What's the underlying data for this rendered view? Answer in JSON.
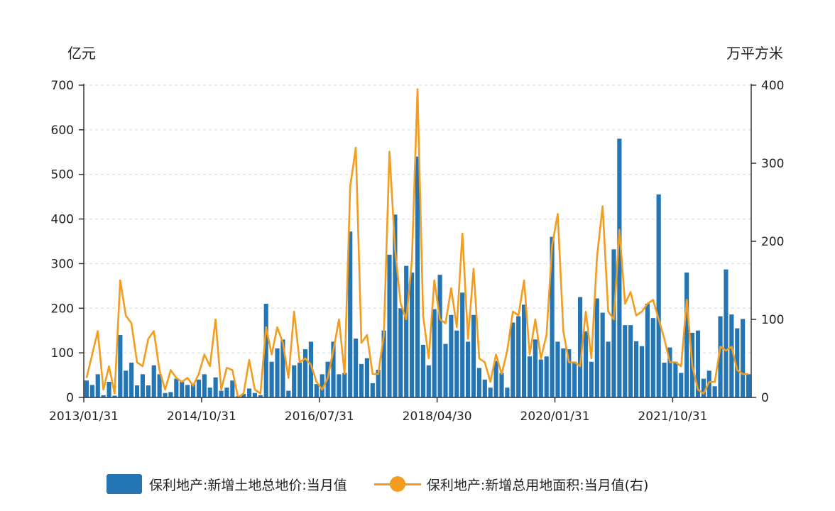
{
  "chart_data": {
    "type": "bar+line",
    "left_unit": "亿元",
    "right_unit": "万平方米",
    "y_left_ticks": [
      "0",
      "100",
      "200",
      "300",
      "400",
      "500",
      "600",
      "700"
    ],
    "y_right_ticks": [
      "0",
      "100",
      "200",
      "300",
      "400"
    ],
    "ylim_left": [
      0,
      700
    ],
    "ylim_right": [
      0,
      400
    ],
    "x_tick_labels": [
      "2013/01/31",
      "2014/10/31",
      "2016/07/31",
      "2018/04/30",
      "2020/01/31",
      "2021/10/31"
    ],
    "x_tick_month_index": [
      0,
      21,
      42,
      63,
      84,
      105
    ],
    "grid": "horizontal dashed",
    "legend_position": "bottom",
    "series": [
      {
        "name": "保利地产:新增土地总地价:当月值",
        "kind": "bar",
        "axis": "left",
        "color": "#2475b3",
        "values": [
          38,
          28,
          52,
          5,
          35,
          4,
          140,
          60,
          78,
          27,
          52,
          27,
          72,
          52,
          10,
          12,
          42,
          35,
          28,
          30,
          40,
          52,
          22,
          45,
          15,
          22,
          38,
          3,
          8,
          20,
          10,
          5,
          210,
          80,
          110,
          130,
          15,
          72,
          78,
          108,
          125,
          30,
          52,
          80,
          125,
          52,
          55,
          372,
          132,
          75,
          88,
          32,
          62,
          150,
          320,
          410,
          200,
          295,
          280,
          540,
          118,
          72,
          198,
          275,
          120,
          185,
          150,
          235,
          125,
          185,
          66,
          40,
          22,
          82,
          55,
          22,
          168,
          182,
          208,
          92,
          130,
          85,
          92,
          360,
          125,
          110,
          108,
          80,
          225,
          148,
          80,
          222,
          190,
          125,
          332,
          580,
          162,
          162,
          126,
          115,
          210,
          178,
          455,
          78,
          112,
          80,
          55,
          280,
          145,
          150,
          42,
          60,
          25,
          182,
          287,
          186,
          155,
          176,
          52
        ]
      },
      {
        "name": "保利地产:新增总用地面积:当月值(右)",
        "kind": "line",
        "axis": "right",
        "color": "#f39c1e",
        "values": [
          25,
          55,
          85,
          10,
          40,
          5,
          150,
          105,
          95,
          45,
          40,
          75,
          85,
          35,
          10,
          35,
          25,
          20,
          25,
          15,
          30,
          55,
          40,
          100,
          10,
          38,
          35,
          0,
          5,
          48,
          10,
          5,
          90,
          55,
          90,
          70,
          25,
          110,
          45,
          50,
          42,
          20,
          10,
          25,
          60,
          100,
          30,
          270,
          320,
          70,
          80,
          30,
          30,
          80,
          315,
          190,
          120,
          100,
          175,
          395,
          105,
          50,
          150,
          100,
          95,
          140,
          90,
          210,
          75,
          165,
          50,
          45,
          20,
          55,
          30,
          60,
          110,
          105,
          150,
          55,
          100,
          50,
          80,
          195,
          235,
          85,
          45,
          45,
          40,
          110,
          50,
          180,
          245,
          110,
          100,
          215,
          120,
          135,
          105,
          110,
          120,
          125,
          100,
          75,
          45,
          45,
          40,
          125,
          40,
          10,
          5,
          20,
          20,
          65,
          60,
          65,
          35,
          30,
          30
        ]
      }
    ]
  },
  "legend": {
    "bar_label": "保利地产:新增土地总地价:当月值",
    "line_label": "保利地产:新增总用地面积:当月值(右)"
  }
}
